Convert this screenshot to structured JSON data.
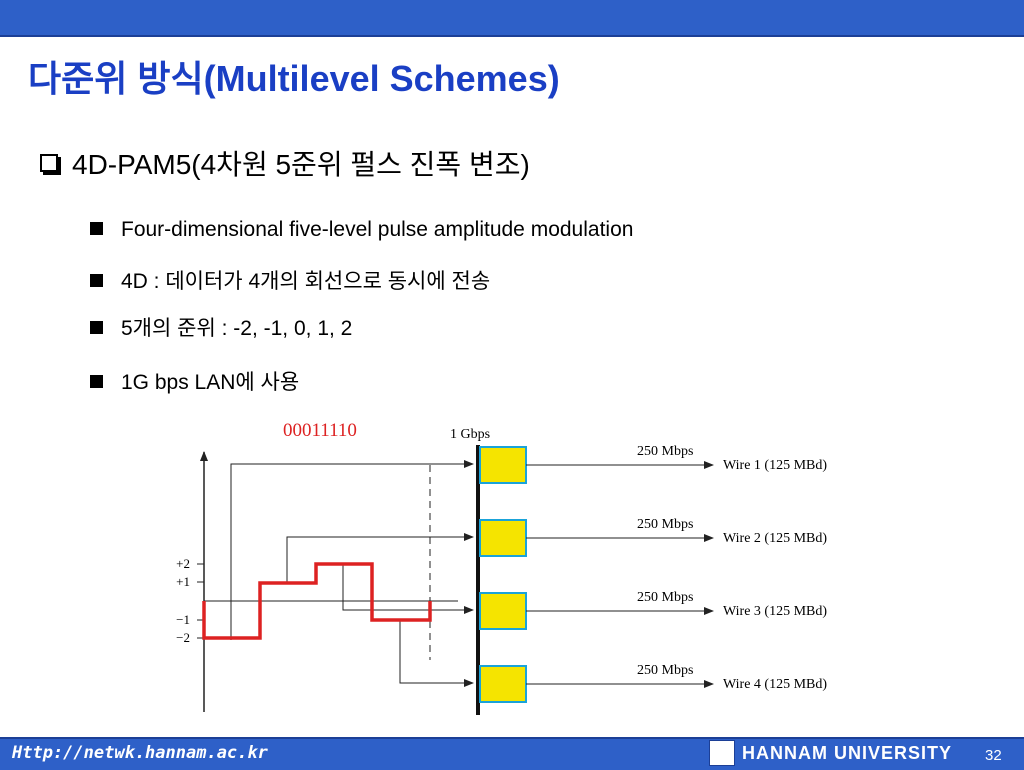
{
  "slide": {
    "title": "다준위 방식(Multilevel Schemes)",
    "heading": "4D-PAM5(4차원 5준위 펄스 진폭 변조)",
    "bullets": [
      "Four-dimensional five-level pulse amplitude modulation",
      "4D : 데이터가 4개의 회선으로 동시에 전송",
      "5개의 준위 : -2, -1, 0, 1, 2",
      "1G bps LAN에 사용"
    ]
  },
  "diagram": {
    "bits_label": "00011110",
    "rate_label": "1 Gbps",
    "y_ticks": [
      "+2",
      "+1",
      "−1",
      "−2"
    ],
    "channels": [
      {
        "rate": "250 Mbps",
        "wire": "Wire 1 (125 MBd)"
      },
      {
        "rate": "250 Mbps",
        "wire": "Wire 2 (125 MBd)"
      },
      {
        "rate": "250 Mbps",
        "wire": "Wire 3 (125 MBd)"
      },
      {
        "rate": "250 Mbps",
        "wire": "Wire 4 (125 MBd)"
      }
    ],
    "signal_levels": [
      -2,
      1,
      2,
      -1
    ],
    "colors": {
      "signal": "#dd2222",
      "block": "#f5e400",
      "block_border": "#1aa3d9",
      "bits": "#dd2222"
    }
  },
  "footer": {
    "url": "Http://netwk.hannam.ac.kr",
    "university": "HANNAM UNIVERSITY",
    "page": "32"
  }
}
